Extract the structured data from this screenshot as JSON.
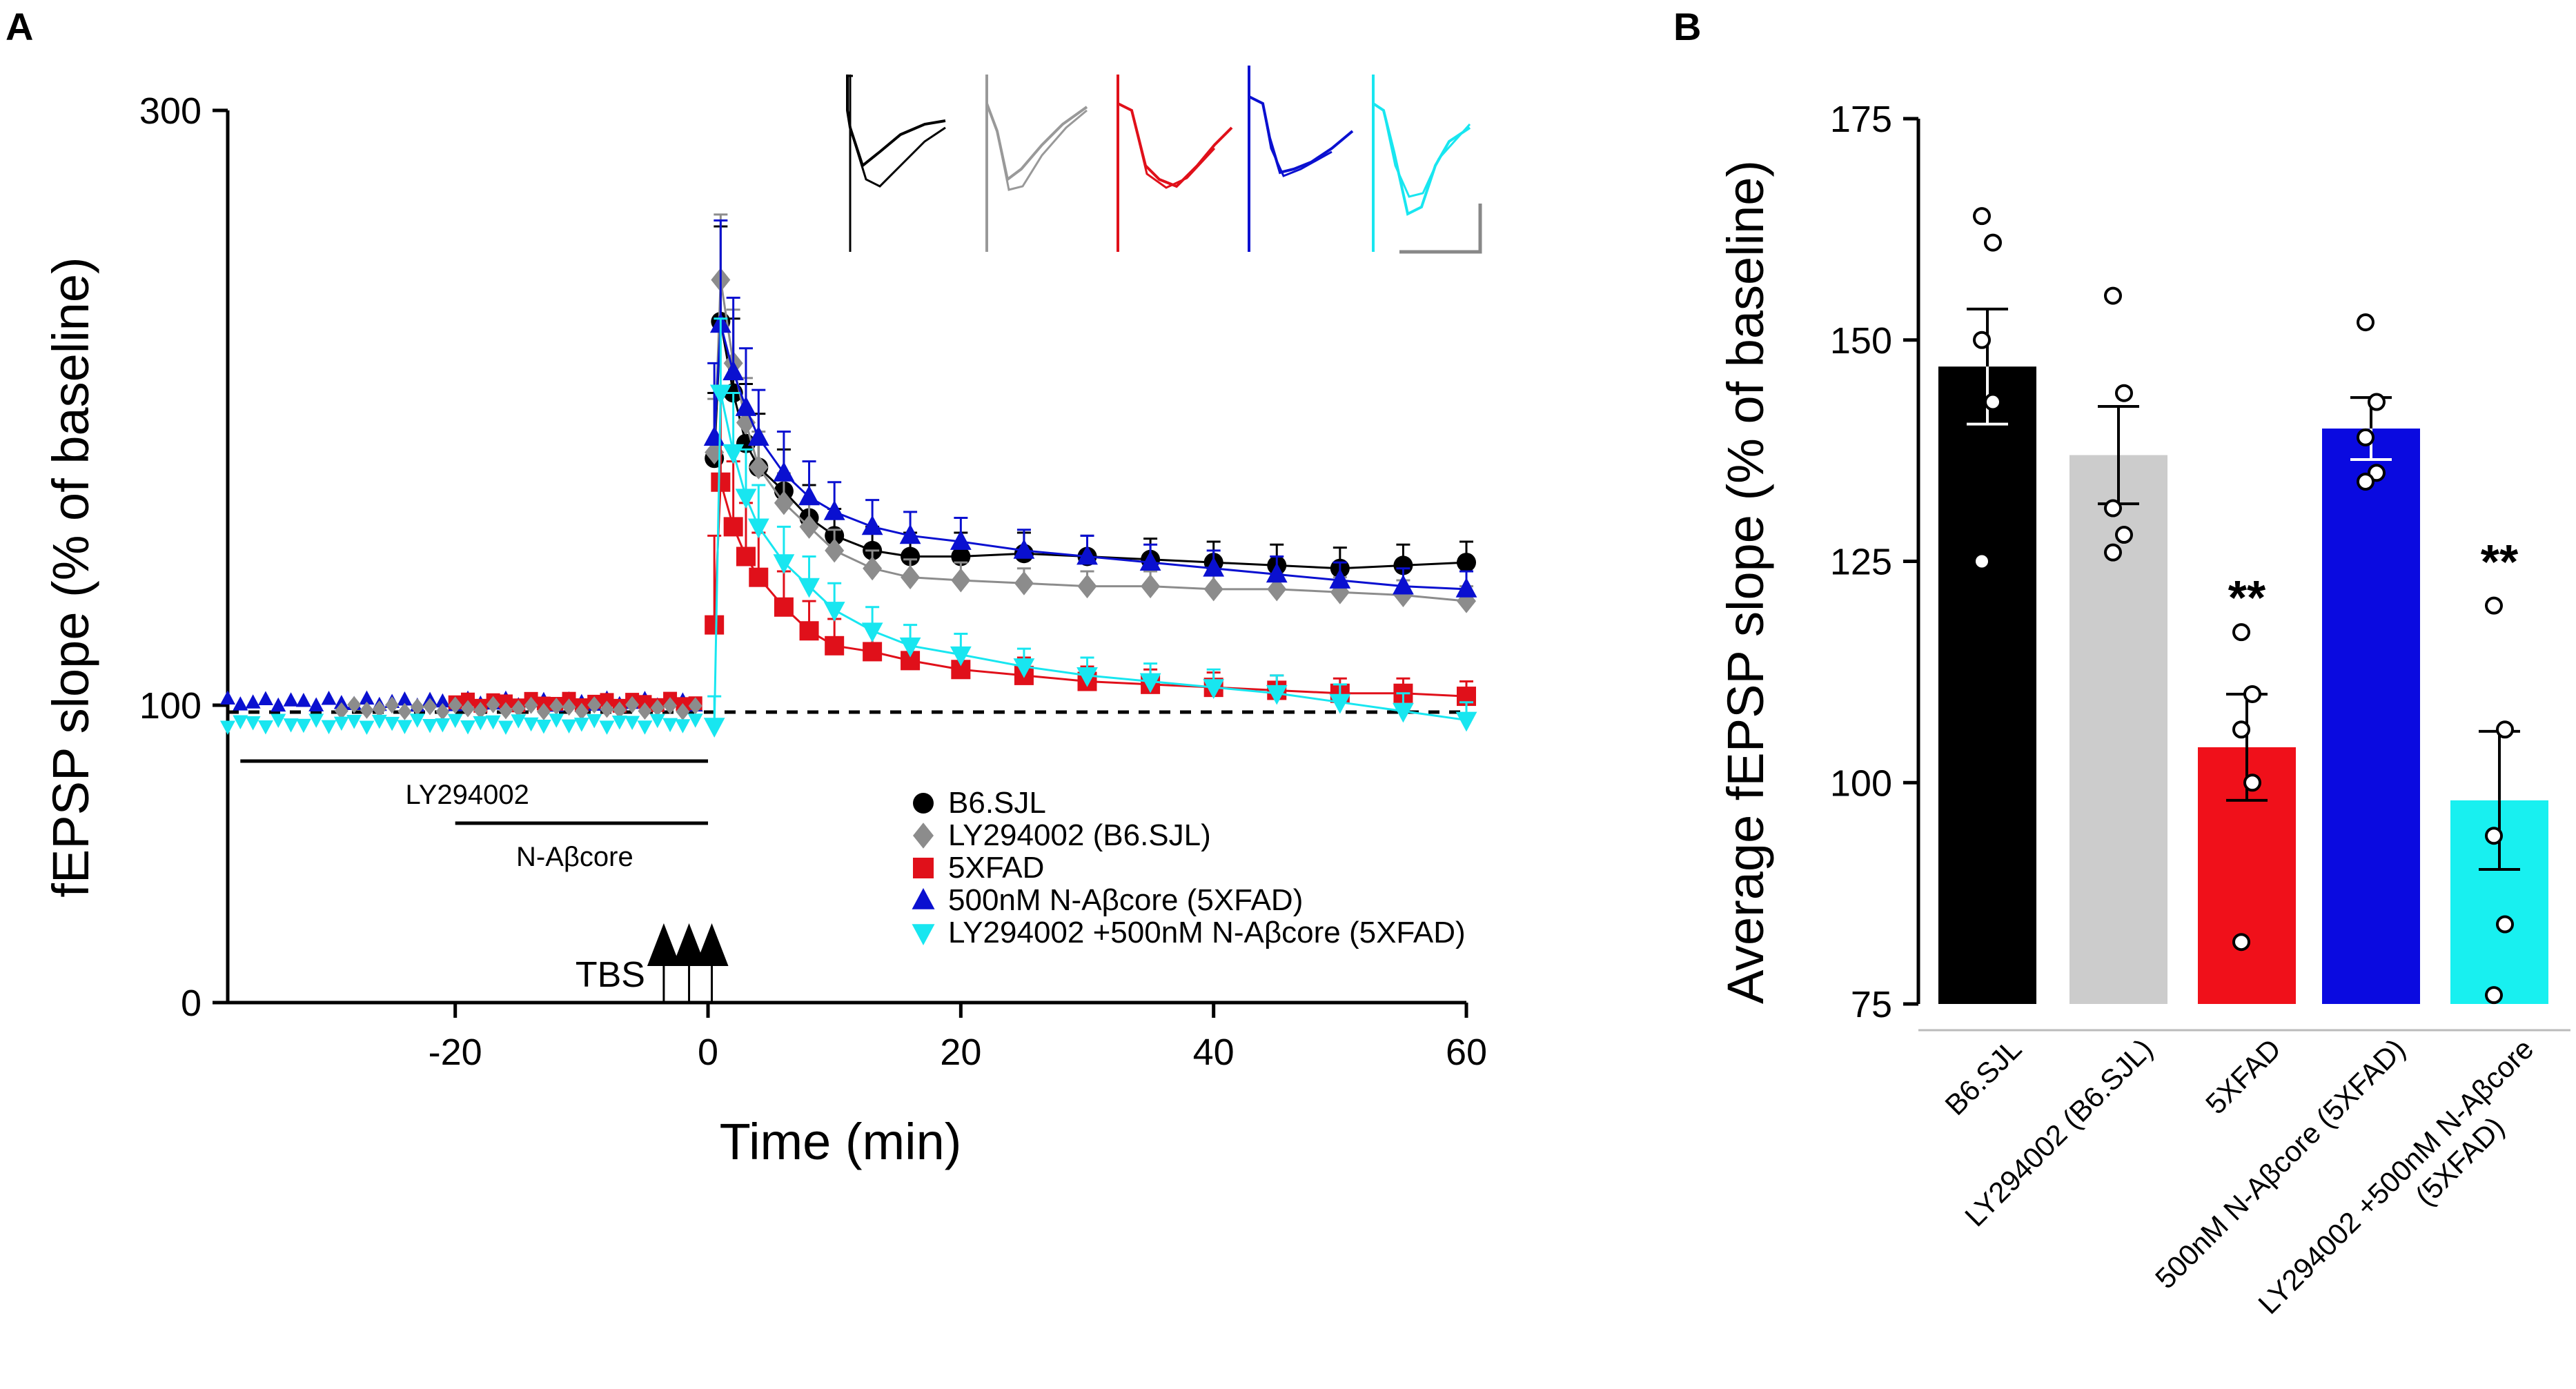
{
  "chart_data": [
    {
      "panel": "A",
      "type": "scatter",
      "xlabel": "Time (min)",
      "ylabel": "fEPSP slope (% of baseline)",
      "xlim": [
        -38,
        60
      ],
      "ylim": [
        0,
        300
      ],
      "xticks": [
        -20,
        0,
        20,
        40,
        60
      ],
      "yticks": [
        0,
        100,
        300
      ],
      "baseline": 100,
      "drug_bars": [
        {
          "label": "LY294002",
          "start": -37,
          "end": 0
        },
        {
          "label": "N-Aβcore",
          "start": -20,
          "end": 0
        }
      ],
      "stimulus": {
        "label": "TBS",
        "times": [
          -3.5,
          -1.5,
          0.3
        ]
      },
      "series": [
        {
          "name": "B6.SJL",
          "color": "#000000",
          "marker": "circle",
          "x": [
            0.5,
            1,
            2,
            3,
            4,
            6,
            8,
            10,
            13,
            16,
            20,
            25,
            30,
            35,
            40,
            45,
            50,
            55,
            60
          ],
          "y": [
            183,
            229,
            205,
            188,
            180,
            172,
            163,
            157,
            152,
            150,
            150,
            151,
            150,
            149,
            148,
            147,
            146,
            147,
            148
          ],
          "err": [
            22,
            32,
            25,
            20,
            18,
            14,
            11,
            9,
            8,
            8,
            8,
            7,
            7,
            7,
            7,
            7,
            7,
            7,
            7
          ]
        },
        {
          "name": "LY294002 (B6.SJL)",
          "color": "#8c8c8c",
          "marker": "diamond",
          "x": [
            0.5,
            1,
            2,
            3,
            4,
            6,
            8,
            10,
            13,
            16,
            20,
            25,
            30,
            35,
            40,
            45,
            50,
            55,
            60
          ],
          "y": [
            185,
            243,
            215,
            195,
            180,
            168,
            160,
            152,
            146,
            143,
            142,
            141,
            140,
            140,
            139,
            139,
            138,
            137,
            135
          ],
          "err": [
            18,
            22,
            18,
            15,
            12,
            10,
            8,
            7,
            6,
            6,
            6,
            5,
            5,
            5,
            5,
            5,
            5,
            5,
            5
          ]
        },
        {
          "name": "5XFAD",
          "color": "#e0101a",
          "marker": "square",
          "x": [
            0.5,
            1,
            2,
            3,
            4,
            6,
            8,
            10,
            13,
            16,
            20,
            25,
            30,
            35,
            40,
            45,
            50,
            55,
            60
          ],
          "y": [
            127,
            175,
            160,
            150,
            143,
            133,
            125,
            120,
            118,
            115,
            112,
            110,
            108,
            107,
            106,
            105,
            104,
            104,
            103
          ],
          "err": [
            30,
            30,
            22,
            18,
            15,
            12,
            10,
            9,
            8,
            7,
            6,
            6,
            5,
            5,
            5,
            5,
            5,
            5,
            5
          ]
        },
        {
          "name": "500nM N-Aβcore (5XFAD)",
          "color": "#0a10d0",
          "marker": "triangle-up",
          "x": [
            0.5,
            1,
            2,
            3,
            4,
            6,
            8,
            10,
            13,
            16,
            20,
            25,
            30,
            35,
            40,
            45,
            50,
            55,
            60
          ],
          "y": [
            190,
            228,
            212,
            200,
            190,
            178,
            170,
            165,
            160,
            157,
            155,
            152,
            150,
            148,
            146,
            144,
            142,
            140,
            139
          ],
          "err": [
            25,
            35,
            25,
            20,
            16,
            14,
            12,
            10,
            9,
            8,
            8,
            7,
            7,
            6,
            6,
            6,
            6,
            6,
            6
          ]
        },
        {
          "name": "LY294002 +500nM N-Aβcore (5XFAD)",
          "color": "#18e6f0",
          "marker": "triangle-down",
          "x": [
            0.5,
            1,
            2,
            3,
            4,
            6,
            8,
            10,
            13,
            16,
            20,
            25,
            30,
            35,
            40,
            45,
            50,
            55,
            60
          ],
          "y": [
            93,
            205,
            185,
            170,
            160,
            148,
            140,
            132,
            125,
            120,
            117,
            113,
            110,
            108,
            106,
            104,
            101,
            98,
            95
          ],
          "err": [
            10,
            25,
            20,
            16,
            14,
            12,
            10,
            9,
            8,
            7,
            7,
            6,
            6,
            6,
            6,
            6,
            6,
            6,
            6
          ]
        }
      ]
    },
    {
      "panel": "B",
      "type": "bar",
      "ylabel": "Average fEPSP slope (% of baseline)",
      "ylim": [
        75,
        175
      ],
      "yticks": [
        75,
        100,
        125,
        150,
        175
      ],
      "categories": [
        "B6.SJL",
        "LY294002 (B6.SJL)",
        "5XFAD",
        "500nM N-Aβcore (5XFAD)",
        "LY294002 +500nM N-Aβcore (5XFAD)"
      ],
      "values": [
        147,
        137,
        104,
        140,
        98
      ],
      "errors": [
        6.5,
        5.5,
        6,
        3.5,
        7.8
      ],
      "colors": [
        "#000000",
        "#cccccc",
        "#f0101a",
        "#0a0ae0",
        "#18f0f0"
      ],
      "significance": [
        "",
        "",
        "**",
        "",
        "**"
      ],
      "points": [
        [
          164,
          161,
          150,
          143,
          125
        ],
        [
          155,
          144,
          131,
          128,
          126
        ],
        [
          117,
          110,
          106,
          100,
          82
        ],
        [
          152,
          143,
          139,
          135,
          134
        ],
        [
          120,
          106,
          94,
          84,
          76
        ]
      ]
    }
  ],
  "panels": {
    "a_label": "A",
    "b_label": "B"
  },
  "panel_a": {
    "xlabel": "Time (min)",
    "ylabel": "fEPSP slope (% of baseline)",
    "xtick_labels": [
      "-20",
      "0",
      "20",
      "40",
      "60"
    ],
    "ytick_labels": [
      "0",
      "100",
      "300"
    ],
    "drug1": "LY294002",
    "drug2": "N-Aβcore",
    "tbs": "TBS",
    "legend": [
      "B6.SJL",
      "LY294002 (B6.SJL)",
      "5XFAD",
      "500nM N-Aβcore (5XFAD)",
      "LY294002 +500nM N-Aβcore (5XFAD)"
    ]
  },
  "panel_b": {
    "ylabel": "Average fEPSP slope (% of baseline)",
    "ytick_labels": [
      "75",
      "100",
      "125",
      "150",
      "175"
    ],
    "significance": "**",
    "category_lines": [
      [
        "B6.SJL"
      ],
      [
        "LY294002 (B6.SJL)"
      ],
      [
        "5XFAD"
      ],
      [
        "500nM N-Aβcore (5XFAD)"
      ],
      [
        "LY294002 +500nM N-Aβcore",
        "(5XFAD)"
      ]
    ]
  }
}
